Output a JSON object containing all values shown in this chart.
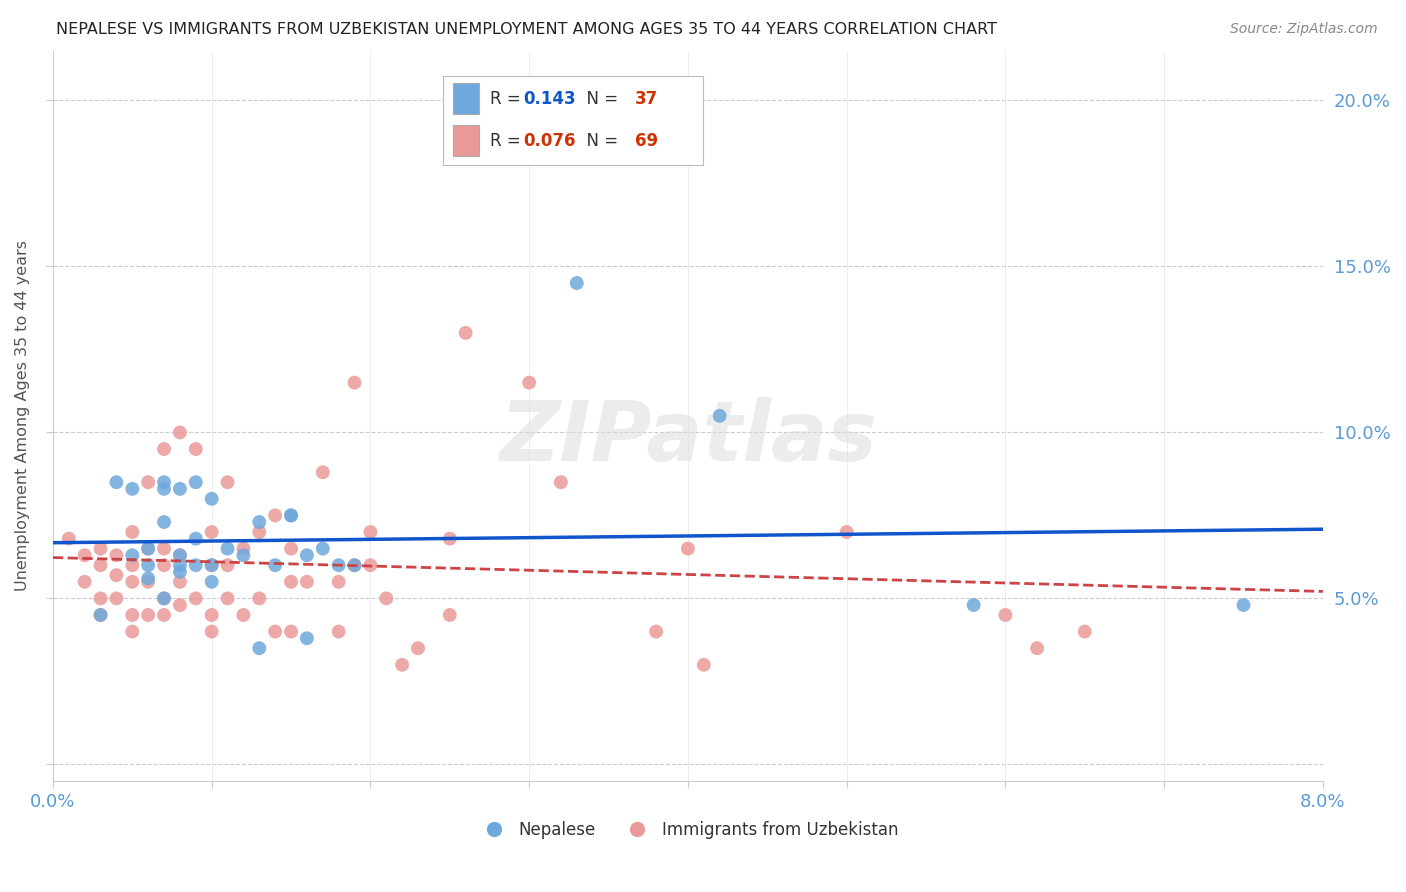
{
  "title": "NEPALESE VS IMMIGRANTS FROM UZBEKISTAN UNEMPLOYMENT AMONG AGES 35 TO 44 YEARS CORRELATION CHART",
  "source": "Source: ZipAtlas.com",
  "ylabel": "Unemployment Among Ages 35 to 44 years",
  "xlim": [
    0.0,
    0.08
  ],
  "ylim": [
    -0.005,
    0.215
  ],
  "x_ticks": [
    0.0,
    0.01,
    0.02,
    0.03,
    0.04,
    0.05,
    0.06,
    0.07,
    0.08
  ],
  "y_ticks": [
    0.0,
    0.05,
    0.1,
    0.15,
    0.2
  ],
  "nepalese_R": "0.143",
  "nepalese_N": "37",
  "uzbekistan_R": "0.076",
  "uzbekistan_N": "69",
  "nepalese_color": "#6fa8dc",
  "uzbekistan_color": "#ea9999",
  "nepalese_line_color": "#1155cc",
  "uzbekistan_line_color": "#cc4444",
  "watermark": "ZIPatlas",
  "nepalese_x": [
    0.003,
    0.004,
    0.005,
    0.005,
    0.006,
    0.006,
    0.006,
    0.007,
    0.007,
    0.007,
    0.007,
    0.008,
    0.008,
    0.008,
    0.008,
    0.009,
    0.009,
    0.009,
    0.01,
    0.01,
    0.01,
    0.011,
    0.012,
    0.013,
    0.013,
    0.014,
    0.015,
    0.015,
    0.016,
    0.016,
    0.017,
    0.018,
    0.019,
    0.033,
    0.042,
    0.058,
    0.075
  ],
  "nepalese_y": [
    0.045,
    0.085,
    0.063,
    0.083,
    0.056,
    0.06,
    0.065,
    0.05,
    0.073,
    0.083,
    0.085,
    0.058,
    0.063,
    0.083,
    0.06,
    0.06,
    0.068,
    0.085,
    0.055,
    0.06,
    0.08,
    0.065,
    0.063,
    0.073,
    0.035,
    0.06,
    0.075,
    0.075,
    0.063,
    0.038,
    0.065,
    0.06,
    0.06,
    0.145,
    0.105,
    0.048,
    0.048
  ],
  "uzbekistan_x": [
    0.001,
    0.002,
    0.002,
    0.003,
    0.003,
    0.003,
    0.003,
    0.004,
    0.004,
    0.004,
    0.005,
    0.005,
    0.005,
    0.005,
    0.005,
    0.006,
    0.006,
    0.006,
    0.006,
    0.007,
    0.007,
    0.007,
    0.007,
    0.007,
    0.008,
    0.008,
    0.008,
    0.008,
    0.009,
    0.009,
    0.01,
    0.01,
    0.01,
    0.01,
    0.011,
    0.011,
    0.011,
    0.012,
    0.012,
    0.013,
    0.013,
    0.014,
    0.014,
    0.015,
    0.015,
    0.015,
    0.016,
    0.017,
    0.018,
    0.018,
    0.019,
    0.019,
    0.02,
    0.02,
    0.021,
    0.022,
    0.023,
    0.025,
    0.025,
    0.026,
    0.03,
    0.032,
    0.038,
    0.04,
    0.041,
    0.05,
    0.06,
    0.062,
    0.065
  ],
  "uzbekistan_y": [
    0.068,
    0.055,
    0.063,
    0.045,
    0.05,
    0.06,
    0.065,
    0.05,
    0.057,
    0.063,
    0.04,
    0.045,
    0.055,
    0.06,
    0.07,
    0.045,
    0.055,
    0.065,
    0.085,
    0.045,
    0.05,
    0.06,
    0.065,
    0.095,
    0.048,
    0.055,
    0.063,
    0.1,
    0.05,
    0.095,
    0.04,
    0.045,
    0.06,
    0.07,
    0.05,
    0.06,
    0.085,
    0.045,
    0.065,
    0.05,
    0.07,
    0.04,
    0.075,
    0.04,
    0.055,
    0.065,
    0.055,
    0.088,
    0.04,
    0.055,
    0.06,
    0.115,
    0.06,
    0.07,
    0.05,
    0.03,
    0.035,
    0.045,
    0.068,
    0.13,
    0.115,
    0.085,
    0.04,
    0.065,
    0.03,
    0.07,
    0.045,
    0.035,
    0.04
  ],
  "background_color": "#ffffff",
  "grid_color": "#cccccc",
  "title_color": "#222222",
  "axis_label_color": "#555555",
  "tick_label_color": "#5b9bd5",
  "legend_R_color_nep": "#1155cc",
  "legend_N_color_nep": "#cc3300",
  "legend_R_color_uzb": "#cc3300",
  "legend_N_color_uzb": "#cc3300"
}
